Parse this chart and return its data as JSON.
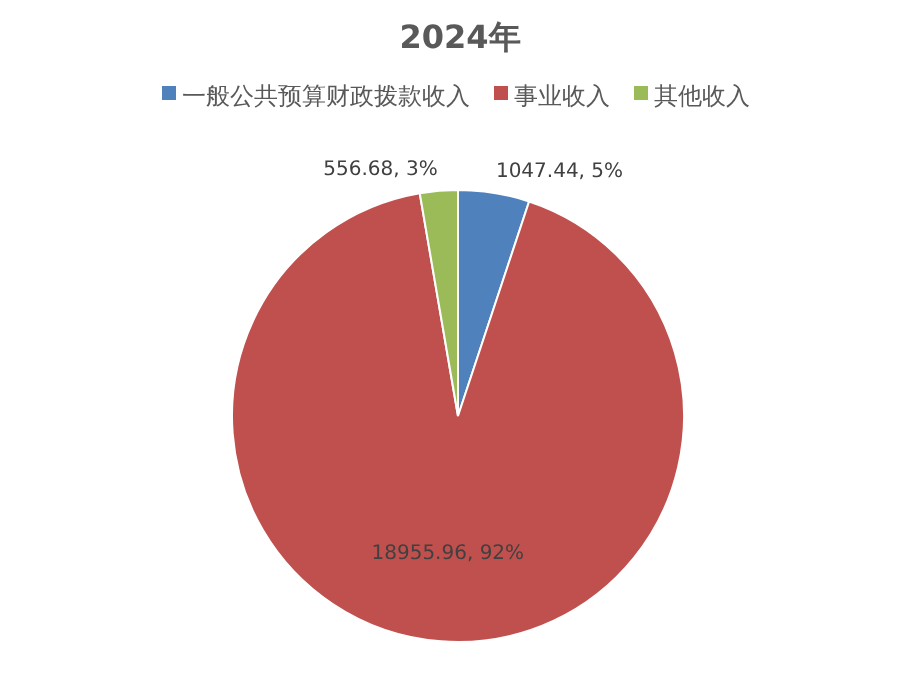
{
  "chart_data": {
    "type": "pie",
    "title": "2024年",
    "categories": [
      "一般公共预算财政拨款收入",
      "事业收入",
      "其他收入"
    ],
    "values": [
      1047.44,
      18955.96,
      556.68
    ],
    "colors": [
      "#4f81bd",
      "#c0504d",
      "#9bbb59"
    ],
    "value_labels": [
      "1047.44, 5%",
      "18955.96, 92%",
      "556.68, 3%"
    ],
    "legend": "top"
  }
}
